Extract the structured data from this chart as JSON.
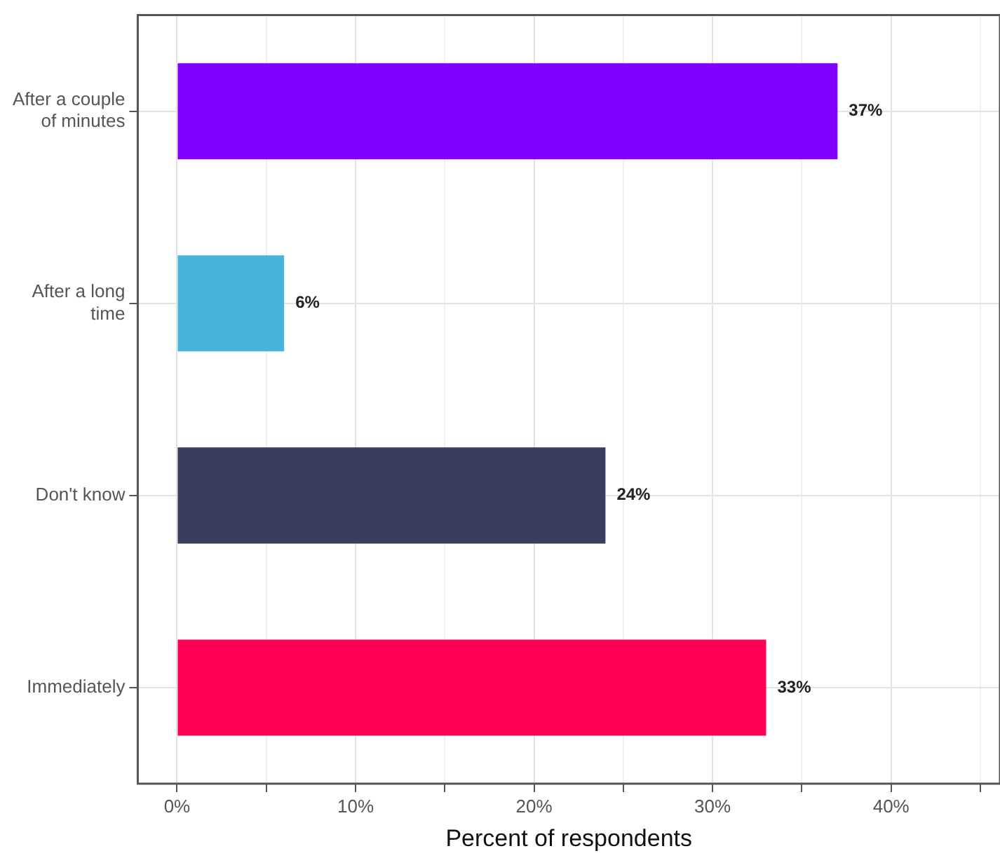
{
  "chart_data": {
    "type": "bar",
    "orientation": "horizontal",
    "xlabel": "Percent of respondents",
    "categories": [
      "After a couple of minutes",
      "After a long time",
      "Don't know",
      "Immediately"
    ],
    "values": [
      37,
      6,
      24,
      33
    ],
    "colors": [
      "#7f00ff",
      "#45b4d8",
      "#3a3d5c",
      "#ff0055"
    ],
    "value_labels": [
      "37%",
      "6%",
      "24%",
      "33%"
    ],
    "xlim": [
      -2.2,
      46.1
    ],
    "xticks": [
      {
        "value": 0,
        "label": "0%"
      },
      {
        "value": 5,
        "label": null
      },
      {
        "value": 10,
        "label": "10%"
      },
      {
        "value": 15,
        "label": null
      },
      {
        "value": 20,
        "label": "20%"
      },
      {
        "value": 25,
        "label": null
      },
      {
        "value": 30,
        "label": "30%"
      },
      {
        "value": 35,
        "label": null
      },
      {
        "value": 40,
        "label": "40%"
      },
      {
        "value": 45,
        "label": null
      }
    ],
    "grid": true,
    "legend": false
  }
}
